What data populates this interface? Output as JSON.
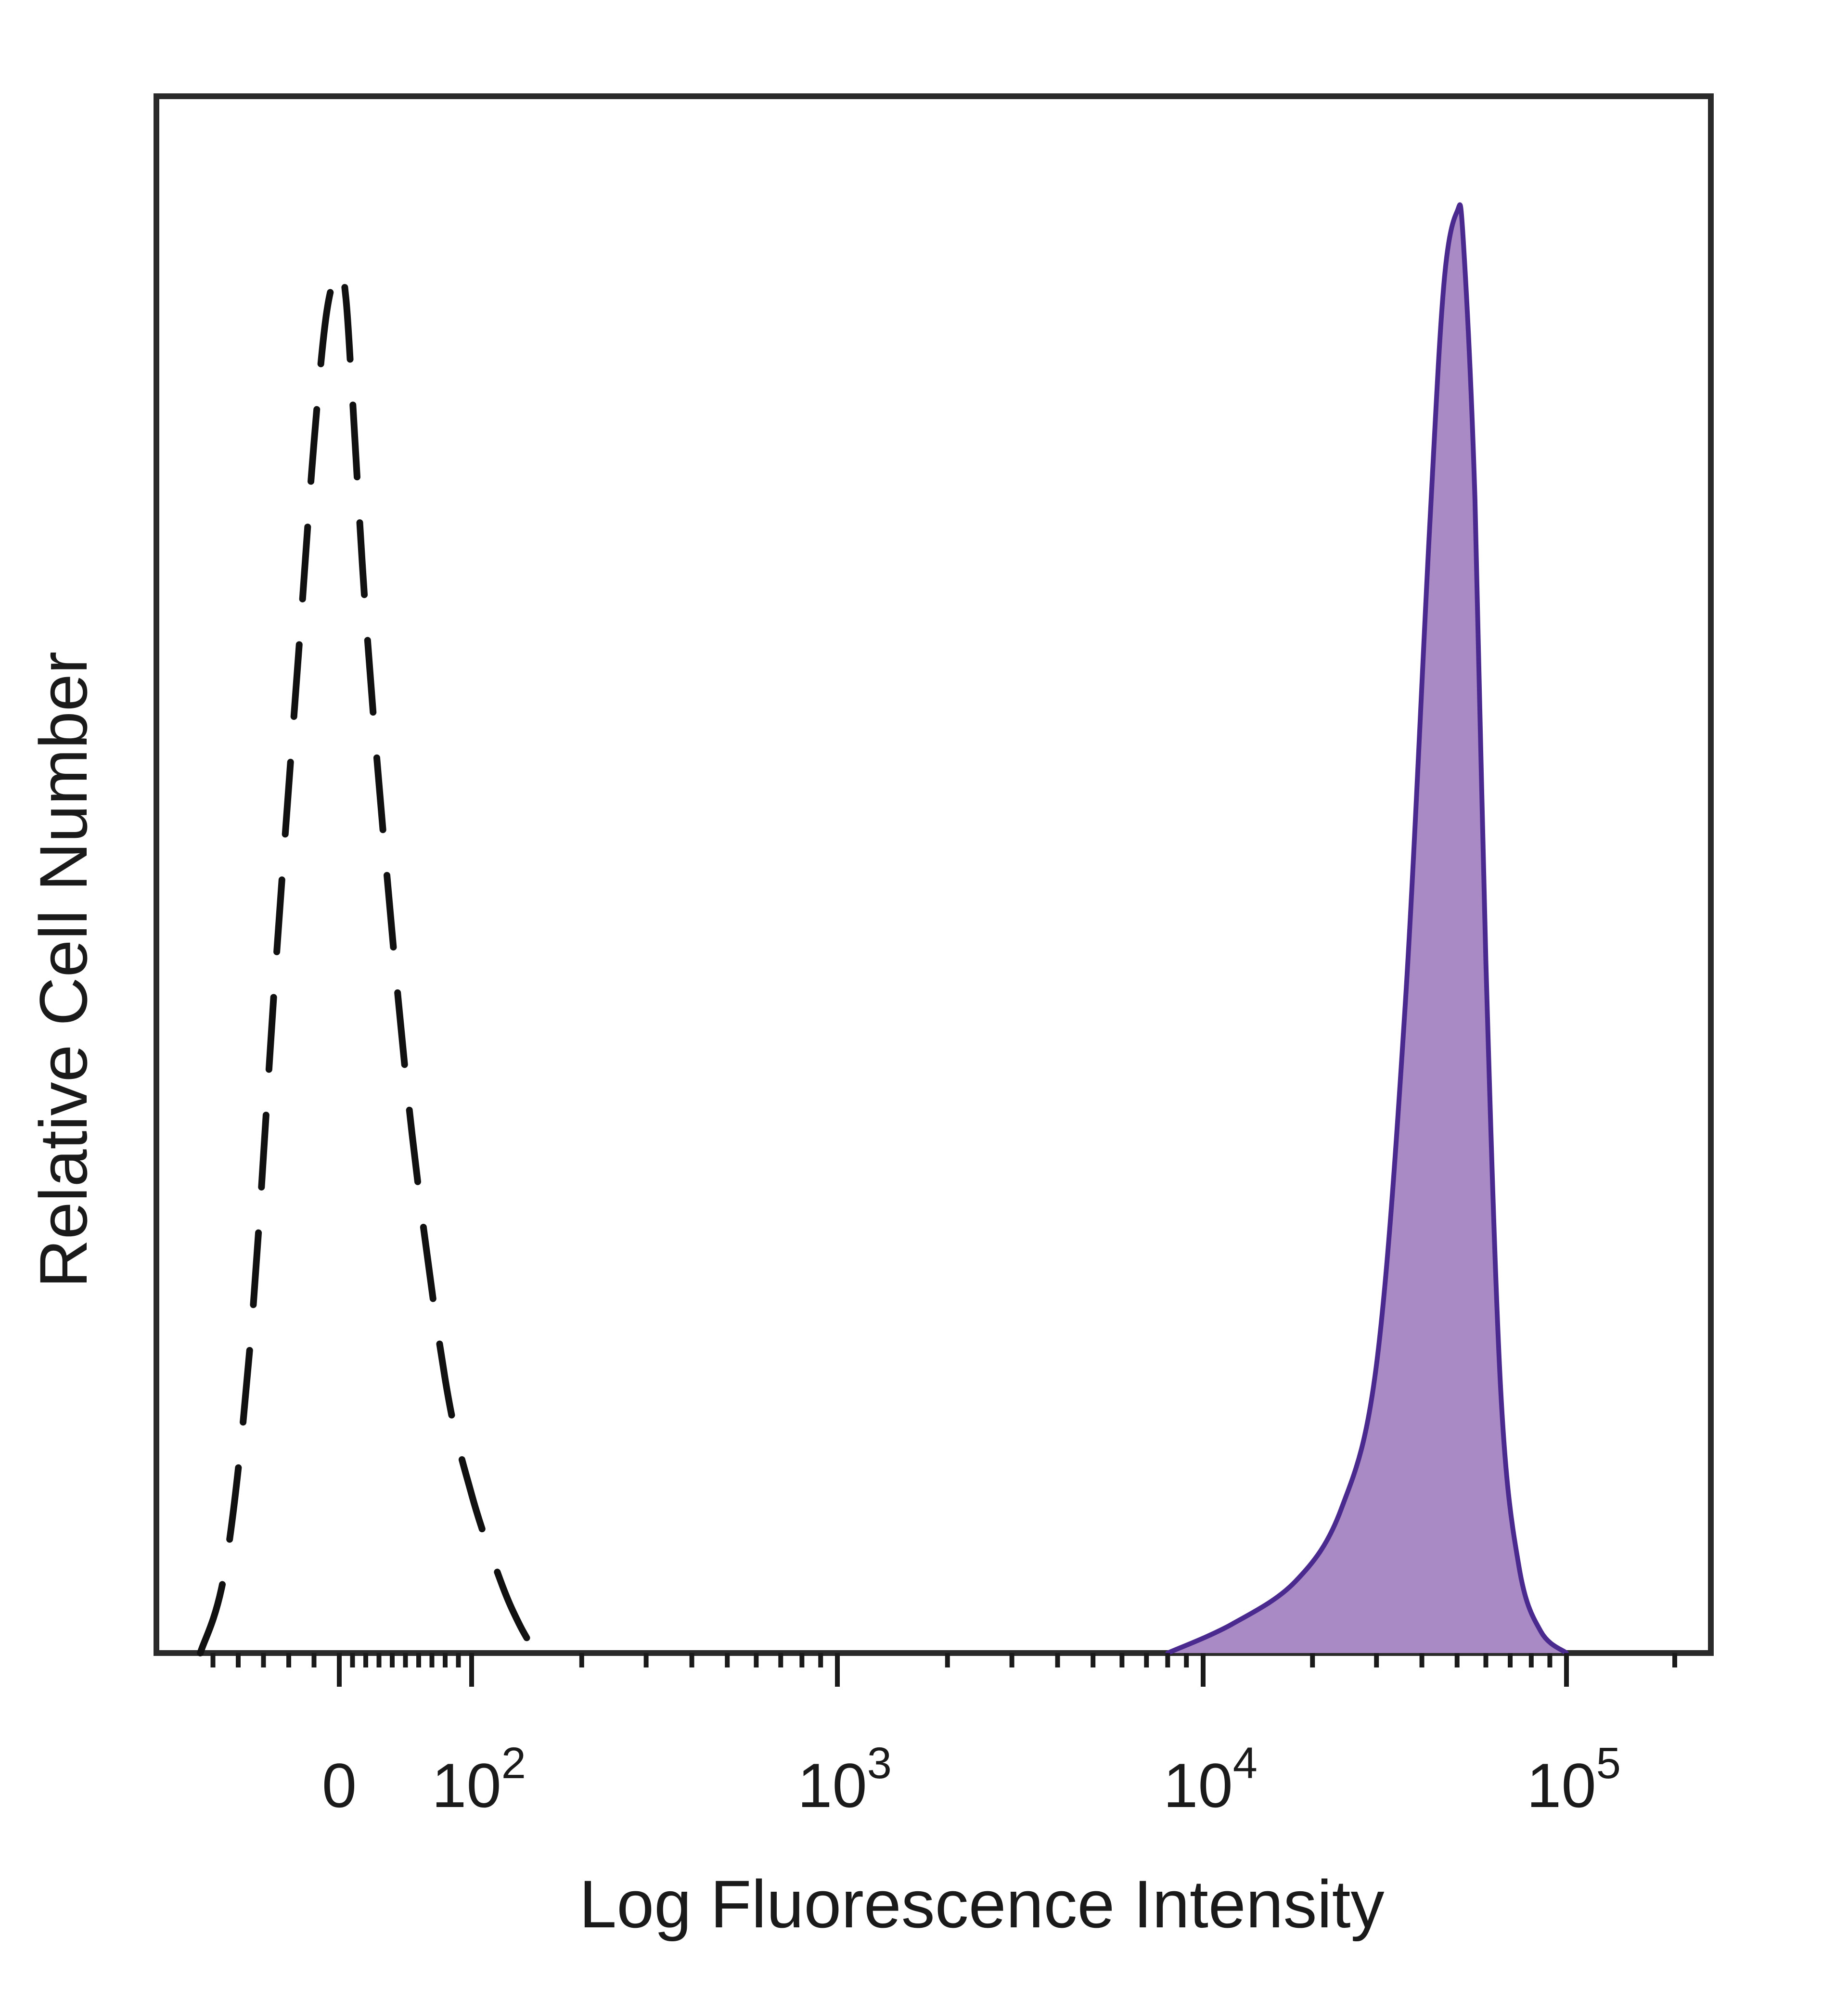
{
  "chart_data": {
    "type": "area",
    "title": "",
    "xlabel": "Log Fluorescence Intensity",
    "ylabel": "Relative Cell Number",
    "x_scale": "biexponential (linear near 0, log above 10^2)",
    "xlim": [
      -60,
      200000
    ],
    "ylim": [
      0,
      1.08
    ],
    "grid": false,
    "legend": "none",
    "x_ticks": [
      {
        "value": 0,
        "base": "0",
        "exp": ""
      },
      {
        "value": 100,
        "base": "10",
        "exp": "2"
      },
      {
        "value": 1000,
        "base": "10",
        "exp": "3"
      },
      {
        "value": 10000,
        "base": "10",
        "exp": "4"
      },
      {
        "value": 100000,
        "base": "10",
        "exp": "5"
      }
    ],
    "series": [
      {
        "style": "dashed",
        "color": "#111111",
        "fill": "none",
        "x": [
          -55,
          -45,
          -35,
          -25,
          -15,
          -10,
          -5,
          0,
          5,
          10,
          20,
          35,
          55,
          80,
          100,
          120,
          135,
          150
        ],
        "y": [
          0.0,
          0.06,
          0.22,
          0.48,
          0.72,
          0.84,
          0.93,
          0.96,
          0.94,
          0.87,
          0.72,
          0.55,
          0.36,
          0.19,
          0.11,
          0.05,
          0.02,
          0.0
        ]
      },
      {
        "style": "solid",
        "color": "#4b2a8f",
        "fill": "#a98ac4",
        "x": [
          8000,
          12000,
          18000,
          24000,
          30000,
          36000,
          42000,
          46000,
          50000,
          52000,
          56000,
          60000,
          66000,
          74000,
          85000,
          100000
        ],
        "y": [
          0.0,
          0.02,
          0.05,
          0.1,
          0.2,
          0.45,
          0.78,
          0.95,
          1.0,
          0.98,
          0.8,
          0.48,
          0.18,
          0.06,
          0.015,
          0.0
        ]
      }
    ]
  }
}
